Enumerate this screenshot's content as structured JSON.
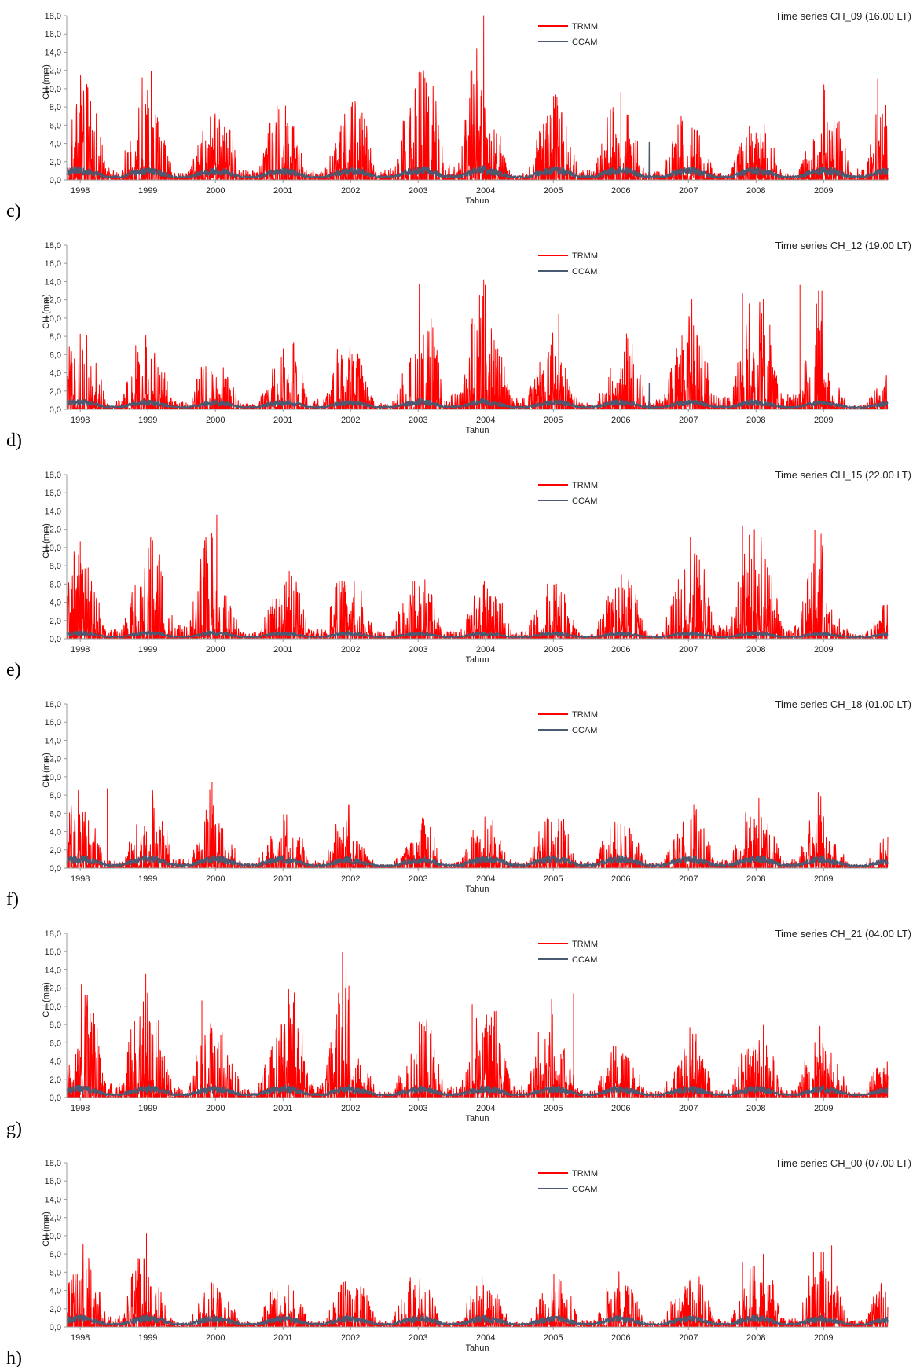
{
  "colors": {
    "trmm": "#ff0000",
    "ccam": "#4a5a72",
    "axis": "#999999",
    "text": "#222222"
  },
  "chart_data": [
    {
      "type": "line",
      "panel_label": "c)",
      "title": "Time series CH_09 (16.00 LT)",
      "xlabel": "Tahun",
      "ylabel": "CH (mm)",
      "ylim": [
        0,
        18
      ],
      "yticks": [
        "0,0",
        "2,0",
        "4,0",
        "6,0",
        "8,0",
        "10,0",
        "12,0",
        "14,0",
        "16,0",
        "18,0"
      ],
      "xticks": [
        "1998",
        "1999",
        "2000",
        "2001",
        "2002",
        "2003",
        "2004",
        "2005",
        "2006",
        "2007",
        "2008",
        "2009"
      ],
      "x_range": [
        1997.8,
        2009.95
      ],
      "grid": false,
      "legend_position": "top-center",
      "series": [
        {
          "name": "TRMM",
          "color": "#ff0000",
          "annual_peak": [
            8.5,
            12.0,
            8.2,
            9.0,
            9.2,
            10.6,
            18.0,
            7.6,
            9.6,
            7.9,
            6.4,
            6.8,
            11.1
          ],
          "peaks": [
            [
              2003.97,
              18.0
            ],
            [
              2003.78,
              11.8
            ],
            [
              1999.05,
              11.9
            ],
            [
              2009.8,
              11.1
            ],
            [
              2003.12,
              10.6
            ],
            [
              2006.0,
              9.6
            ]
          ]
        },
        {
          "name": "CCAM",
          "color": "#4a5a72",
          "annual_peak": [
            3.0,
            2.6,
            2.5,
            2.5,
            2.4,
            2.6,
            3.0,
            2.5,
            2.8,
            2.6,
            2.6,
            2.5,
            2.8
          ],
          "peaks": [
            [
              2006.42,
              4.1
            ]
          ]
        }
      ]
    },
    {
      "type": "line",
      "panel_label": "d)",
      "title": "Time series CH_12 (19.00 LT)",
      "xlabel": "Tahun",
      "ylabel": "CH (mm)",
      "ylim": [
        0,
        18
      ],
      "yticks": [
        "0,0",
        "2,0",
        "4,0",
        "6,0",
        "8,0",
        "10,0",
        "12,0",
        "14,0",
        "16,0",
        "18,0"
      ],
      "xticks": [
        "1998",
        "1999",
        "2000",
        "2001",
        "2002",
        "2003",
        "2004",
        "2005",
        "2006",
        "2007",
        "2008",
        "2009"
      ],
      "x_range": [
        1997.8,
        2009.95
      ],
      "grid": false,
      "legend_position": "top-center",
      "series": [
        {
          "name": "TRMM",
          "color": "#ff0000",
          "annual_peak": [
            9.0,
            9.1,
            7.0,
            5.7,
            9.2,
            6.8,
            14.2,
            10.4,
            6.1,
            9.0,
            12.7,
            13.6,
            4.1
          ],
          "peaks": [
            [
              2003.97,
              14.2
            ],
            [
              2008.65,
              13.6
            ],
            [
              2007.8,
              12.7
            ],
            [
              2005.08,
              10.4
            ]
          ]
        },
        {
          "name": "CCAM",
          "color": "#4a5a72",
          "annual_peak": [
            2.2,
            2.0,
            1.8,
            1.8,
            2.0,
            1.8,
            2.2,
            1.8,
            2.0,
            1.8,
            2.0,
            1.8,
            1.6
          ],
          "peaks": [
            [
              2006.42,
              2.8
            ]
          ]
        }
      ]
    },
    {
      "type": "line",
      "panel_label": "e)",
      "title": "Time series CH_15 (22.00 LT)",
      "xlabel": "Tahun",
      "ylabel": "CH (mm)",
      "ylim": [
        0,
        18
      ],
      "yticks": [
        "0,0",
        "2,0",
        "4,0",
        "6,0",
        "8,0",
        "10,0",
        "12,0",
        "14,0",
        "16,0",
        "18,0"
      ],
      "xticks": [
        "1998",
        "1999",
        "2000",
        "2001",
        "2002",
        "2003",
        "2004",
        "2005",
        "2006",
        "2007",
        "2008",
        "2009"
      ],
      "x_range": [
        1997.8,
        2009.95
      ],
      "grid": false,
      "legend_position": "top-center",
      "series": [
        {
          "name": "TRMM",
          "color": "#ff0000",
          "annual_peak": [
            10.6,
            8.7,
            13.6,
            6.0,
            8.8,
            6.8,
            7.0,
            7.1,
            6.3,
            7.9,
            12.4,
            11.9,
            4.6
          ],
          "peaks": [
            [
              2000.02,
              13.6
            ],
            [
              2007.8,
              12.4
            ],
            [
              2008.87,
              11.9
            ],
            [
              1998.0,
              10.6
            ]
          ]
        },
        {
          "name": "CCAM",
          "color": "#4a5a72",
          "annual_peak": [
            1.6,
            1.5,
            1.6,
            1.4,
            1.5,
            1.3,
            1.4,
            1.3,
            1.4,
            1.3,
            1.5,
            1.4,
            1.2
          ],
          "peaks": []
        }
      ]
    },
    {
      "type": "line",
      "panel_label": "f)",
      "title": "Time series CH_18 (01.00 LT)",
      "xlabel": "Tahun",
      "ylabel": "CH (mm)",
      "ylim": [
        0,
        18
      ],
      "yticks": [
        "0,0",
        "2,0",
        "4,0",
        "6,0",
        "8,0",
        "10,0",
        "12,0",
        "14,0",
        "16,0",
        "18,0"
      ],
      "xticks": [
        "1998",
        "1999",
        "2000",
        "2001",
        "2002",
        "2003",
        "2004",
        "2005",
        "2006",
        "2007",
        "2008",
        "2009"
      ],
      "x_range": [
        1997.8,
        2009.95
      ],
      "grid": false,
      "legend_position": "top-center",
      "series": [
        {
          "name": "TRMM",
          "color": "#ff0000",
          "annual_peak": [
            8.7,
            6.6,
            9.4,
            5.0,
            7.3,
            3.3,
            5.9,
            6.1,
            6.5,
            5.6,
            7.5,
            8.3,
            3.6
          ],
          "peaks": [
            [
              1999.95,
              9.4
            ],
            [
              1998.4,
              8.7
            ],
            [
              2008.92,
              8.3
            ]
          ]
        },
        {
          "name": "CCAM",
          "color": "#4a5a72",
          "annual_peak": [
            2.6,
            2.6,
            2.6,
            2.6,
            2.4,
            2.0,
            2.4,
            2.6,
            2.6,
            2.4,
            2.6,
            2.6,
            2.0
          ],
          "peaks": []
        }
      ]
    },
    {
      "type": "line",
      "panel_label": "g)",
      "title": "Time series CH_21 (04.00 LT)",
      "xlabel": "Tahun",
      "ylabel": "CH (mm)",
      "ylim": [
        0,
        18
      ],
      "yticks": [
        "0,0",
        "2,0",
        "4,0",
        "6,0",
        "8,0",
        "10,0",
        "12,0",
        "14,0",
        "16,0",
        "18,0"
      ],
      "xticks": [
        "1998",
        "1999",
        "2000",
        "2001",
        "2002",
        "2003",
        "2004",
        "2005",
        "2006",
        "2007",
        "2008",
        "2009"
      ],
      "x_range": [
        1997.8,
        2009.95
      ],
      "grid": false,
      "legend_position": "top-center",
      "series": [
        {
          "name": "TRMM",
          "color": "#ff0000",
          "annual_peak": [
            5.4,
            13.5,
            10.6,
            8.2,
            15.9,
            5.7,
            10.2,
            11.4,
            6.7,
            5.7,
            7.8,
            8.7,
            5.5
          ],
          "peaks": [
            [
              2001.88,
              15.9
            ],
            [
              1998.97,
              13.5
            ],
            [
              2005.3,
              11.4
            ],
            [
              1999.8,
              10.6
            ],
            [
              2003.8,
              10.2
            ]
          ]
        },
        {
          "name": "CCAM",
          "color": "#4a5a72",
          "annual_peak": [
            2.5,
            2.5,
            2.5,
            2.4,
            2.6,
            2.2,
            2.5,
            2.4,
            2.4,
            2.2,
            2.4,
            2.4,
            2.2
          ],
          "peaks": []
        }
      ]
    },
    {
      "type": "line",
      "panel_label": "h)",
      "title": "Time series CH_00 (07.00 LT)",
      "xlabel": "Tahun",
      "ylabel": "CH (mm)",
      "ylim": [
        0,
        18
      ],
      "yticks": [
        "0,0",
        "2,0",
        "4,0",
        "6,0",
        "8,0",
        "10,0",
        "12,0",
        "14,0",
        "16,0",
        "18,0"
      ],
      "xticks": [
        "1998",
        "1999",
        "2000",
        "2001",
        "2002",
        "2003",
        "2004",
        "2005",
        "2006",
        "2007",
        "2008",
        "2009"
      ],
      "x_range": [
        1997.8,
        2009.95
      ],
      "grid": false,
      "legend_position": "top-center",
      "series": [
        {
          "name": "TRMM",
          "color": "#ff0000",
          "annual_peak": [
            6.5,
            10.2,
            5.5,
            5.0,
            5.6,
            6.0,
            5.7,
            4.6,
            6.3,
            5.2,
            7.1,
            8.9,
            6.2
          ],
          "peaks": [
            [
              1998.98,
              10.2
            ],
            [
              2009.12,
              8.9
            ],
            [
              2008.85,
              8.2
            ],
            [
              2007.8,
              7.1
            ]
          ]
        },
        {
          "name": "CCAM",
          "color": "#4a5a72",
          "annual_peak": [
            2.4,
            2.4,
            2.4,
            2.2,
            2.4,
            2.2,
            2.4,
            2.2,
            2.4,
            2.2,
            2.4,
            2.4,
            2.0
          ],
          "peaks": []
        }
      ]
    }
  ]
}
